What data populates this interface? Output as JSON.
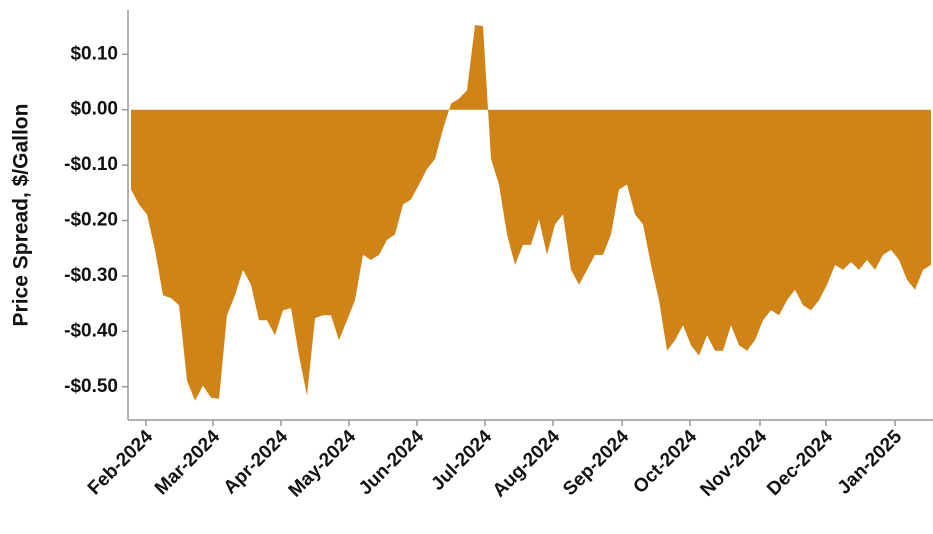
{
  "chart_data": {
    "type": "area",
    "y_label": "Price Spread, $/Gallon",
    "color": "#d08316",
    "values": [
      -0.144,
      -0.171,
      -0.189,
      -0.253,
      -0.335,
      -0.34,
      -0.353,
      -0.489,
      -0.525,
      -0.498,
      -0.52,
      -0.522,
      -0.371,
      -0.335,
      -0.289,
      -0.316,
      -0.38,
      -0.38,
      -0.407,
      -0.362,
      -0.358,
      -0.444,
      -0.516,
      -0.376,
      -0.371,
      -0.371,
      -0.416,
      -0.38,
      -0.344,
      -0.262,
      -0.271,
      -0.262,
      -0.235,
      -0.225,
      -0.171,
      -0.162,
      -0.135,
      -0.107,
      -0.089,
      -0.035,
      0.011,
      0.02,
      0.035,
      0.153,
      0.151,
      -0.089,
      -0.135,
      -0.225,
      -0.28,
      -0.244,
      -0.244,
      -0.198,
      -0.262,
      -0.207,
      -0.189,
      -0.289,
      -0.316,
      -0.289,
      -0.262,
      -0.262,
      -0.225,
      -0.144,
      -0.135,
      -0.189,
      -0.207,
      -0.28,
      -0.344,
      -0.435,
      -0.416,
      -0.389,
      -0.425,
      -0.444,
      -0.407,
      -0.435,
      -0.435,
      -0.389,
      -0.425,
      -0.435,
      -0.416,
      -0.38,
      -0.362,
      -0.371,
      -0.344,
      -0.325,
      -0.353,
      -0.362,
      -0.344,
      -0.316,
      -0.28,
      -0.289,
      -0.275,
      -0.289,
      -0.271,
      -0.289,
      -0.262,
      -0.253,
      -0.271,
      -0.307,
      -0.325,
      -0.289,
      -0.28
    ],
    "xlim": [
      0,
      100
    ],
    "xticks": [
      {
        "value": 1.875,
        "label": "Feb-2024"
      },
      {
        "value": 10.25,
        "label": "Mar-2024"
      },
      {
        "value": 18.75,
        "label": "Apr-2024"
      },
      {
        "value": 27.25,
        "label": "May-2024"
      },
      {
        "value": 35.75,
        "label": "Jun-2024"
      },
      {
        "value": 44.25,
        "label": "Jul-2024"
      },
      {
        "value": 52.75,
        "label": "Aug-2024"
      },
      {
        "value": 61.375,
        "label": "Sep-2024"
      },
      {
        "value": 69.875,
        "label": "Oct-2024"
      },
      {
        "value": 78.625,
        "label": "Nov-2024"
      },
      {
        "value": 86.875,
        "label": "Dec-2024"
      },
      {
        "value": 95.5,
        "label": "Jan-2025"
      }
    ],
    "ylim": [
      -0.56,
      0.18
    ],
    "yticks": [
      {
        "value": 0.1,
        "label": "$0.10"
      },
      {
        "value": 0,
        "label": "$0.00"
      },
      {
        "value": -0.1,
        "label": "-$0.10"
      },
      {
        "value": -0.2,
        "label": "-$0.20"
      },
      {
        "value": -0.3,
        "label": "-$0.30"
      },
      {
        "value": -0.4,
        "label": "-$0.40"
      },
      {
        "value": -0.5,
        "label": "-$0.50"
      }
    ]
  }
}
